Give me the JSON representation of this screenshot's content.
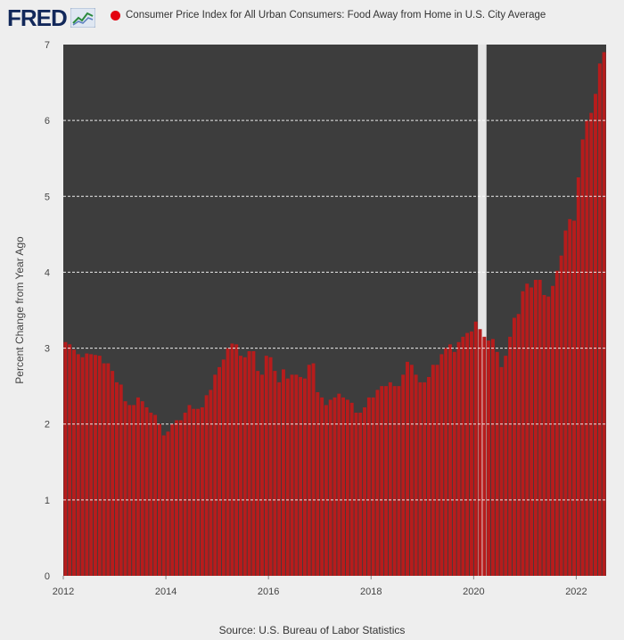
{
  "header": {
    "logo_text": "FRED",
    "legend_label": "Consumer Price Index for All Urban Consumers: Food Away from Home in U.S. City Average"
  },
  "footer": {
    "source": "Source: U.S. Bureau of Labor Statistics"
  },
  "colors": {
    "bar": "#b71c1c",
    "plot_bg": "#3d3d3d",
    "recession": "#e5e5e5",
    "grid": "#ffffff",
    "page_bg": "#eeeeee"
  },
  "chart_data": {
    "type": "bar",
    "title": "Consumer Price Index for All Urban Consumers: Food Away from Home in U.S. City Average",
    "xlabel": "",
    "ylabel": "Percent Change from Year Ago",
    "ylim": [
      0,
      7
    ],
    "yticks": [
      0,
      1,
      2,
      3,
      4,
      5,
      6,
      7
    ],
    "xticks": [
      "2012",
      "2014",
      "2016",
      "2018",
      "2020",
      "2022"
    ],
    "start": "2012-01",
    "frequency": "monthly",
    "recession": {
      "start": "2020-02",
      "end": "2020-04"
    },
    "series": [
      {
        "name": "Consumer Price Index for All Urban Consumers: Food Away from Home in U.S. City Average",
        "values": [
          3.08,
          3.05,
          2.98,
          2.92,
          2.88,
          2.93,
          2.92,
          2.91,
          2.9,
          2.8,
          2.8,
          2.7,
          2.55,
          2.52,
          2.3,
          2.25,
          2.25,
          2.35,
          2.3,
          2.22,
          2.15,
          2.12,
          2.0,
          1.85,
          1.9,
          2.0,
          2.05,
          2.05,
          2.15,
          2.25,
          2.2,
          2.2,
          2.22,
          2.38,
          2.45,
          2.65,
          2.75,
          2.85,
          3.0,
          3.06,
          3.05,
          2.9,
          2.88,
          2.96,
          2.96,
          2.7,
          2.65,
          2.9,
          2.88,
          2.7,
          2.55,
          2.72,
          2.6,
          2.65,
          2.65,
          2.62,
          2.6,
          2.78,
          2.8,
          2.42,
          2.35,
          2.25,
          2.32,
          2.35,
          2.4,
          2.35,
          2.32,
          2.28,
          2.15,
          2.15,
          2.22,
          2.35,
          2.35,
          2.45,
          2.5,
          2.5,
          2.55,
          2.5,
          2.5,
          2.65,
          2.82,
          2.78,
          2.65,
          2.55,
          2.55,
          2.62,
          2.78,
          2.78,
          2.92,
          3.0,
          3.05,
          2.95,
          3.08,
          3.15,
          3.2,
          3.22,
          3.35,
          3.25,
          3.15,
          3.1,
          3.12,
          2.95,
          2.75,
          2.9,
          3.15,
          3.4,
          3.45,
          3.75,
          3.85,
          3.8,
          3.9,
          3.9,
          3.7,
          3.68,
          3.82,
          4.02,
          4.22,
          4.55,
          4.7,
          4.68,
          5.25,
          5.75,
          6.0,
          6.1,
          6.35,
          6.75,
          6.9
        ]
      }
    ]
  }
}
